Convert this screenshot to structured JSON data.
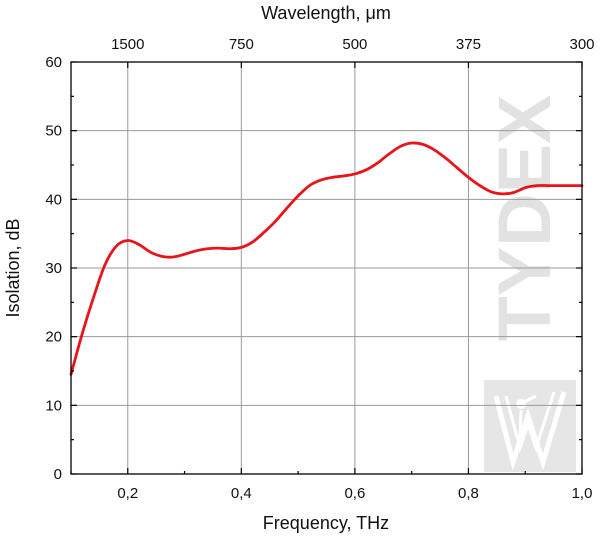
{
  "colors": {
    "curve": "#e8141c",
    "grid": "#9a9a9a",
    "axis": "#000000",
    "watermark": "#e2e2e2"
  },
  "watermark": {
    "text": "TYDEX",
    "logo": "tydex-logo"
  },
  "chart_data": {
    "type": "line",
    "xlabel": "Frequency, THz",
    "ylabel": "Isolation, dB",
    "x2label": "Wavelength, μm",
    "xlim": [
      0.1,
      1.0
    ],
    "ylim": [
      0,
      60
    ],
    "grid": true,
    "x_ticks": [
      {
        "value": 0.2,
        "label": "0,2"
      },
      {
        "value": 0.4,
        "label": "0,4"
      },
      {
        "value": 0.6,
        "label": "0,6"
      },
      {
        "value": 0.8,
        "label": "0,8"
      },
      {
        "value": 1.0,
        "label": "1,0"
      }
    ],
    "y_ticks": [
      {
        "value": 0,
        "label": "0"
      },
      {
        "value": 10,
        "label": "10"
      },
      {
        "value": 20,
        "label": "20"
      },
      {
        "value": 30,
        "label": "30"
      },
      {
        "value": 40,
        "label": "40"
      },
      {
        "value": 50,
        "label": "50"
      },
      {
        "value": 60,
        "label": "60"
      }
    ],
    "x2_ticks": [
      {
        "frequency": 0.2,
        "label": "1500"
      },
      {
        "frequency": 0.4,
        "label": "750"
      },
      {
        "frequency": 0.6,
        "label": "500"
      },
      {
        "frequency": 0.8,
        "label": "375"
      },
      {
        "frequency": 1.0,
        "label": "300"
      }
    ],
    "series": [
      {
        "x": [
          0.1,
          0.12,
          0.14,
          0.16,
          0.18,
          0.2,
          0.22,
          0.24,
          0.26,
          0.28,
          0.3,
          0.32,
          0.34,
          0.36,
          0.38,
          0.4,
          0.42,
          0.44,
          0.46,
          0.48,
          0.5,
          0.52,
          0.54,
          0.56,
          0.58,
          0.6,
          0.62,
          0.64,
          0.66,
          0.68,
          0.7,
          0.72,
          0.74,
          0.76,
          0.78,
          0.8,
          0.82,
          0.84,
          0.86,
          0.88,
          0.9,
          0.92,
          0.94,
          0.96,
          0.98,
          1.0
        ],
        "y": [
          14.5,
          20.5,
          25.8,
          30.5,
          33.2,
          34.0,
          33.4,
          32.3,
          31.7,
          31.6,
          32.0,
          32.5,
          32.8,
          32.9,
          32.8,
          33.0,
          33.8,
          35.2,
          36.8,
          38.7,
          40.5,
          42.0,
          42.8,
          43.2,
          43.4,
          43.7,
          44.3,
          45.3,
          46.6,
          47.7,
          48.2,
          48.0,
          47.2,
          46.0,
          44.6,
          43.2,
          42.0,
          41.1,
          40.8,
          41.0,
          41.7,
          42.0,
          42.0,
          42.0,
          42.0,
          42.0
        ]
      }
    ]
  }
}
